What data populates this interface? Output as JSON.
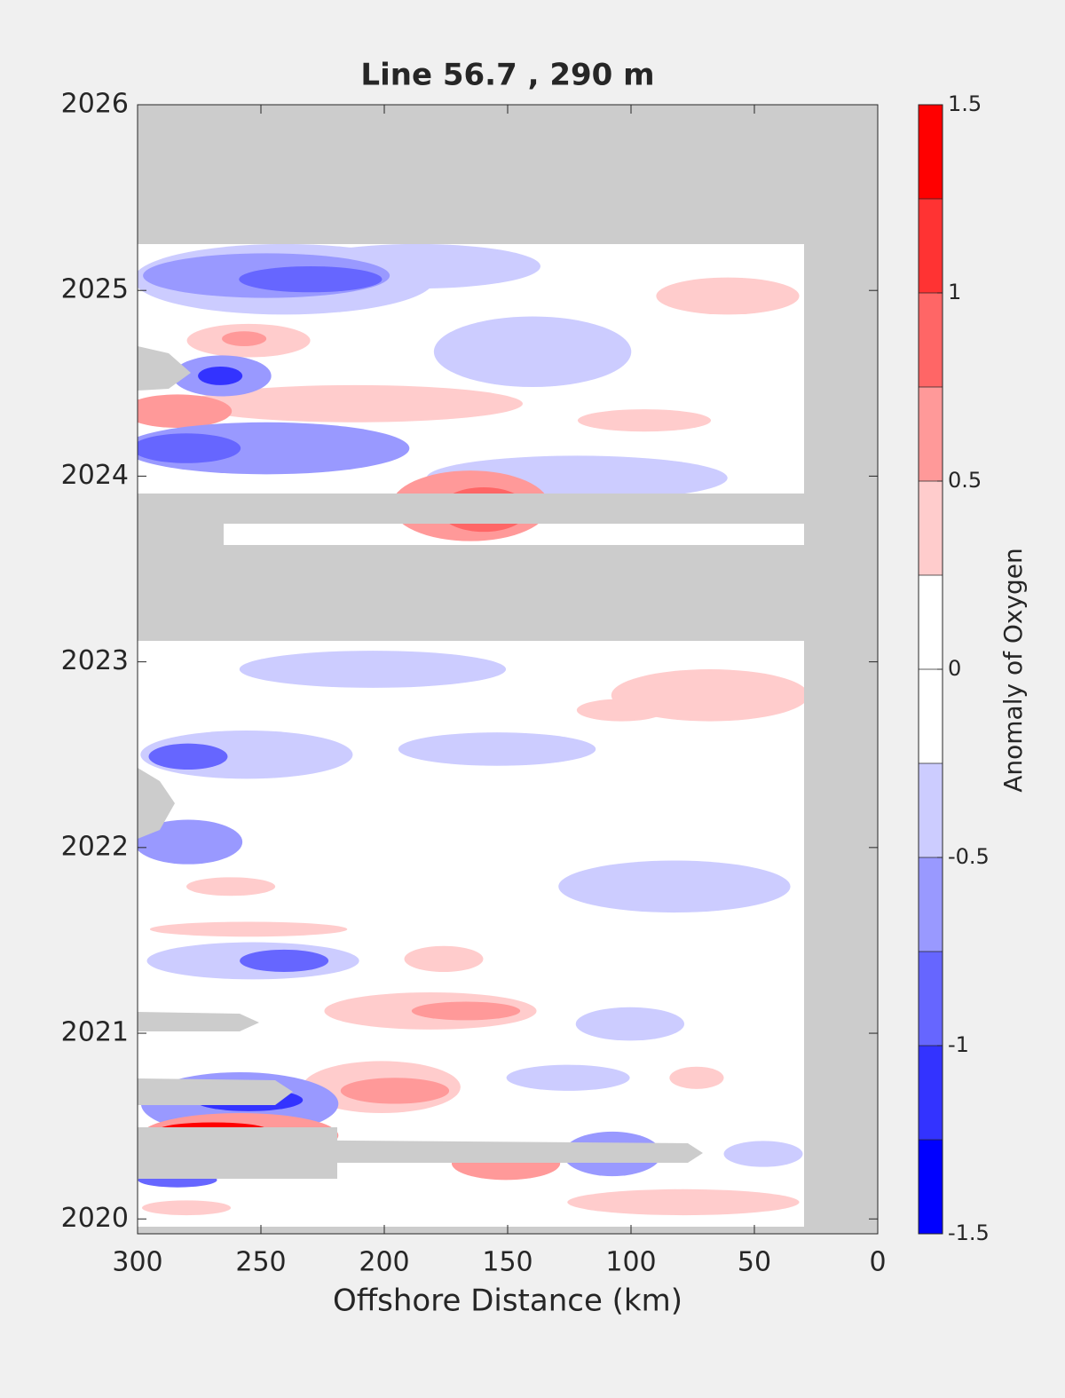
{
  "chart_data": {
    "type": "contour",
    "title": "Line 56.7 , 290 m",
    "xlabel": "Offshore Distance (km)",
    "xlim": [
      300,
      0
    ],
    "xticks": [
      300,
      250,
      200,
      150,
      100,
      50,
      0
    ],
    "ylim": [
      2019.92,
      2026
    ],
    "yticks": [
      2020,
      2021,
      2022,
      2023,
      2024,
      2025,
      2026
    ],
    "colorbar": {
      "label": "Anomaly of Oxygen",
      "levels": [
        -1.5,
        -1.25,
        -1,
        -0.75,
        -0.5,
        -0.25,
        0,
        0.25,
        0.5,
        0.75,
        1,
        1.25,
        1.5
      ],
      "colors": [
        "#0000ff",
        "#3333ff",
        "#6666ff",
        "#9999ff",
        "#ccccff",
        "#ffffff",
        "#ffffff",
        "#ffcccc",
        "#ff9999",
        "#ff6666",
        "#ff3333",
        "#ff0000"
      ],
      "ticks": [
        -1.5,
        -1,
        -0.5,
        0,
        0.5,
        1,
        1.5
      ]
    },
    "anomalies": [
      {
        "x": 186.7,
        "y": 2025.13,
        "rx": 50,
        "ry": 0.12,
        "value": -0.35
      },
      {
        "x": 139.9,
        "y": 2024.67,
        "rx": 40,
        "ry": 0.19,
        "value": -0.4
      },
      {
        "x": 211.9,
        "y": 2024.39,
        "rx": 68,
        "ry": 0.1,
        "value": 0.4
      },
      {
        "x": 121.9,
        "y": 2023.99,
        "rx": 61,
        "ry": 0.12,
        "value": -0.35
      },
      {
        "x": 240.6,
        "y": 2025.06,
        "rx": 61,
        "ry": 0.19,
        "value": -0.4
      },
      {
        "x": 247.8,
        "y": 2025.08,
        "rx": 50,
        "ry": 0.12,
        "value": -0.6
      },
      {
        "x": 229.9,
        "y": 2025.06,
        "rx": 29,
        "ry": 0.07,
        "value": -0.9
      },
      {
        "x": 255,
        "y": 2024.73,
        "rx": 25,
        "ry": 0.09,
        "value": 0.4
      },
      {
        "x": 256.8,
        "y": 2024.74,
        "rx": 9,
        "ry": 0.04,
        "value": 0.7
      },
      {
        "x": 265.8,
        "y": 2024.54,
        "rx": 20,
        "ry": 0.11,
        "value": -0.5
      },
      {
        "x": 266.5,
        "y": 2024.54,
        "rx": 9,
        "ry": 0.05,
        "value": -1.1
      },
      {
        "x": 283.8,
        "y": 2024.35,
        "rx": 22,
        "ry": 0.09,
        "value": 0.7
      },
      {
        "x": 247.8,
        "y": 2024.15,
        "rx": 58,
        "ry": 0.14,
        "value": -0.5
      },
      {
        "x": 280.2,
        "y": 2024.15,
        "rx": 22,
        "ry": 0.08,
        "value": -0.8
      },
      {
        "x": 60.8,
        "y": 2024.97,
        "rx": 29,
        "ry": 0.1,
        "value": 0.4
      },
      {
        "x": 94.6,
        "y": 2024.3,
        "rx": 27,
        "ry": 0.06,
        "value": 0.35
      },
      {
        "x": 165.1,
        "y": 2023.84,
        "rx": 32,
        "ry": 0.19,
        "value": 0.6
      },
      {
        "x": 159.7,
        "y": 2023.82,
        "rx": 18,
        "ry": 0.12,
        "value": 0.9
      },
      {
        "x": 204.7,
        "y": 2022.96,
        "rx": 54,
        "ry": 0.1,
        "value": -0.4
      },
      {
        "x": 68,
        "y": 2022.82,
        "rx": 40,
        "ry": 0.14,
        "value": 0.35
      },
      {
        "x": 255.8,
        "y": 2022.5,
        "rx": 43,
        "ry": 0.13,
        "value": -0.4
      },
      {
        "x": 279.5,
        "y": 2022.49,
        "rx": 16,
        "ry": 0.07,
        "value": -0.8
      },
      {
        "x": 154.3,
        "y": 2022.53,
        "rx": 40,
        "ry": 0.09,
        "value": -0.35
      },
      {
        "x": 104,
        "y": 2022.74,
        "rx": 18,
        "ry": 0.06,
        "value": 0.35
      },
      {
        "x": 279.5,
        "y": 2022.03,
        "rx": 22,
        "ry": 0.12,
        "value": -0.5
      },
      {
        "x": 82.4,
        "y": 2021.79,
        "rx": 47,
        "ry": 0.14,
        "value": -0.4
      },
      {
        "x": 262.2,
        "y": 2021.79,
        "rx": 18,
        "ry": 0.05,
        "value": 0.35
      },
      {
        "x": 255,
        "y": 2021.56,
        "rx": 40,
        "ry": 0.04,
        "value": 0.35
      },
      {
        "x": 253.2,
        "y": 2021.39,
        "rx": 43,
        "ry": 0.1,
        "value": -0.4
      },
      {
        "x": 240.6,
        "y": 2021.39,
        "rx": 18,
        "ry": 0.06,
        "value": -0.8
      },
      {
        "x": 175.9,
        "y": 2021.4,
        "rx": 16,
        "ry": 0.07,
        "value": 0.4
      },
      {
        "x": 181.3,
        "y": 2021.12,
        "rx": 43,
        "ry": 0.1,
        "value": 0.4
      },
      {
        "x": 166.9,
        "y": 2021.12,
        "rx": 22,
        "ry": 0.05,
        "value": 0.6
      },
      {
        "x": 100.4,
        "y": 2021.05,
        "rx": 22,
        "ry": 0.09,
        "value": -0.35
      },
      {
        "x": 201.1,
        "y": 2020.71,
        "rx": 32,
        "ry": 0.14,
        "value": 0.4
      },
      {
        "x": 195.7,
        "y": 2020.69,
        "rx": 22,
        "ry": 0.07,
        "value": 0.7
      },
      {
        "x": 125.5,
        "y": 2020.76,
        "rx": 25,
        "ry": 0.07,
        "value": -0.4
      },
      {
        "x": 258.6,
        "y": 2020.62,
        "rx": 40,
        "ry": 0.17,
        "value": -0.5
      },
      {
        "x": 255,
        "y": 2020.64,
        "rx": 22,
        "ry": 0.06,
        "value": -1.1
      },
      {
        "x": 258.6,
        "y": 2020.45,
        "rx": 40,
        "ry": 0.12,
        "value": 0.7
      },
      {
        "x": 269.4,
        "y": 2020.48,
        "rx": 22,
        "ry": 0.04,
        "value": 1.3
      },
      {
        "x": 150.7,
        "y": 2020.3,
        "rx": 22,
        "ry": 0.09,
        "value": 0.6
      },
      {
        "x": 107.6,
        "y": 2020.35,
        "rx": 20,
        "ry": 0.12,
        "value": -0.6
      },
      {
        "x": 78.8,
        "y": 2020.09,
        "rx": 47,
        "ry": 0.07,
        "value": 0.35
      },
      {
        "x": 280.2,
        "y": 2020.06,
        "rx": 18,
        "ry": 0.04,
        "value": 0.35
      },
      {
        "x": 283.8,
        "y": 2020.21,
        "rx": 16,
        "ry": 0.04,
        "value": -0.8
      },
      {
        "x": 46.4,
        "y": 2020.35,
        "rx": 16,
        "ry": 0.07,
        "value": -0.35
      },
      {
        "x": 73.4,
        "y": 2020.76,
        "rx": 11,
        "ry": 0.06,
        "value": 0.35
      }
    ]
  }
}
